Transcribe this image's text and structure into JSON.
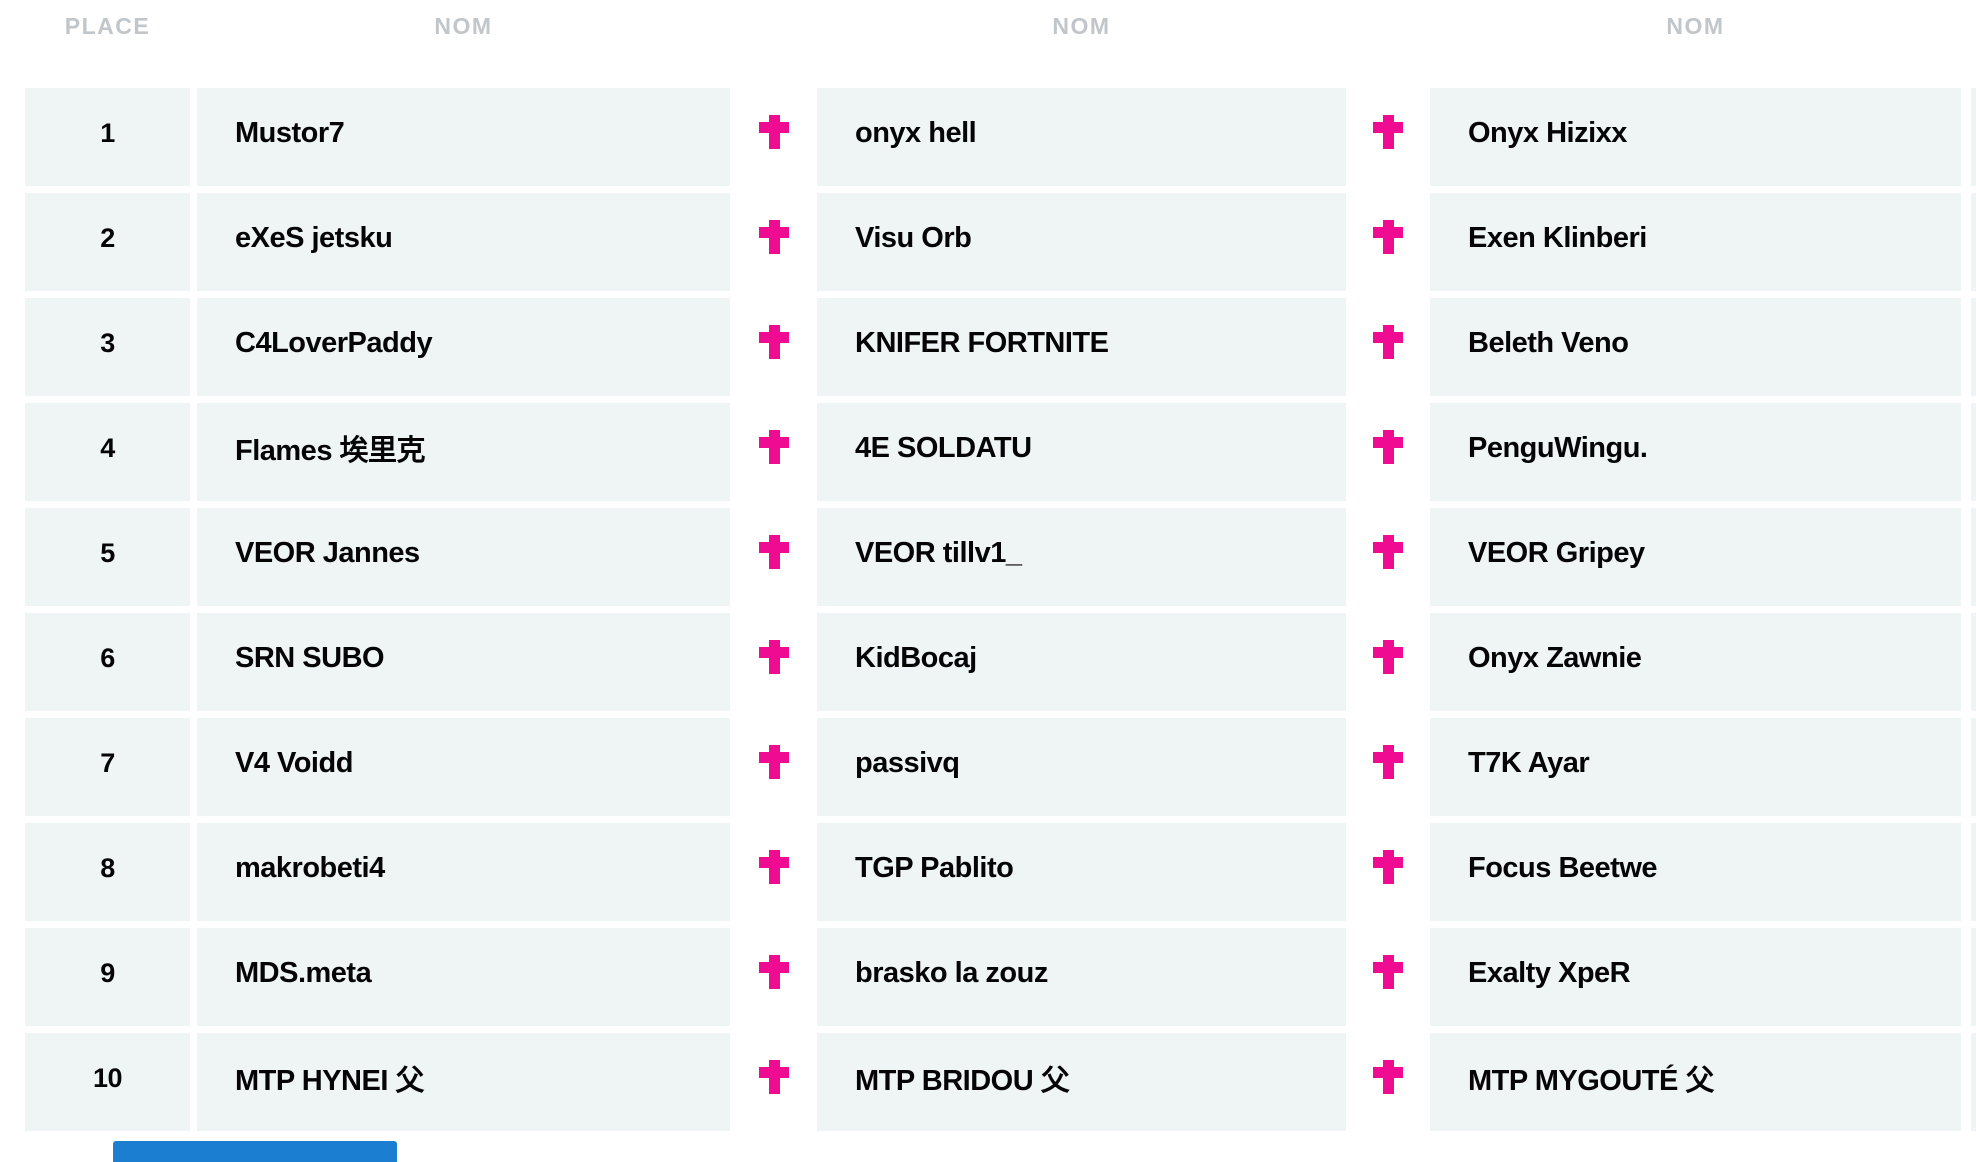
{
  "table": {
    "place_header": "PLACE",
    "name_header": "NOM",
    "rows": [
      {
        "place": "1",
        "names": [
          "Mustor7",
          "onyx hell",
          "Onyx Hizixx"
        ]
      },
      {
        "place": "2",
        "names": [
          "eXeS jetsku",
          "Visu Orb",
          "Exen Klinberi"
        ]
      },
      {
        "place": "3",
        "names": [
          "C4LoverPaddy",
          "KNIFER FORTNITE",
          "Beleth Veno"
        ]
      },
      {
        "place": "4",
        "names": [
          "Flames 埃里克",
          "4E SOLDATU",
          "PenguWingu."
        ]
      },
      {
        "place": "5",
        "names": [
          "VEOR Jannes",
          "VEOR tillv1_",
          "VEOR Gripey"
        ]
      },
      {
        "place": "6",
        "names": [
          "SRN SUBO",
          "KidBocaj",
          "Onyx Zawnie"
        ]
      },
      {
        "place": "7",
        "names": [
          "V4 Voidd",
          "passivq",
          "T7K Ayar"
        ]
      },
      {
        "place": "8",
        "names": [
          "makrobeti4",
          "TGP Pablito",
          "Focus Beetwe"
        ]
      },
      {
        "place": "9",
        "names": [
          "MDS.meta",
          "brasko la zouz",
          "Exalty XpeR"
        ]
      },
      {
        "place": "10",
        "names": [
          "MTP HYNEI 父",
          "MTP BRIDOU 父",
          "MTP MYGOUTÉ 父"
        ]
      }
    ]
  },
  "icons": {
    "separator": "plus-icon"
  },
  "colors": {
    "row_bg": "#eff4f5",
    "accent_pink": "#f00c92",
    "header_text": "#c1c6cb",
    "name_text": "#050505",
    "blue_bar": "#1c7ed0"
  }
}
